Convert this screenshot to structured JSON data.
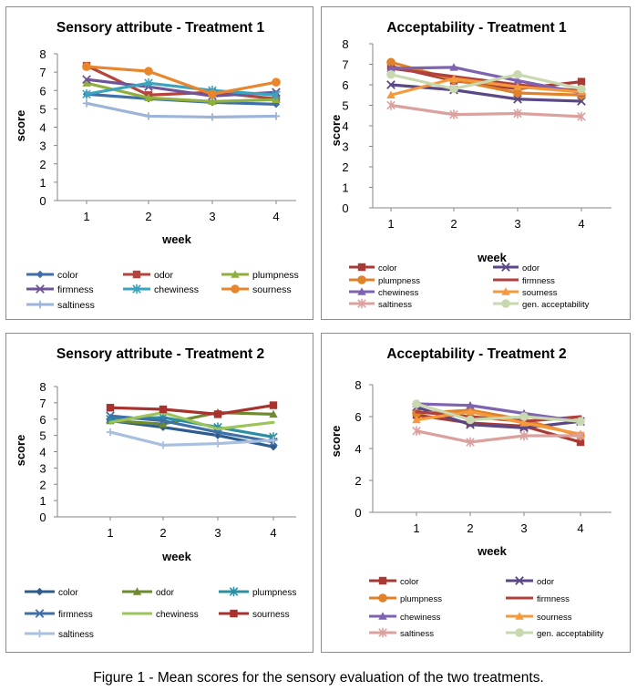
{
  "figure_caption": "Figure 1 - Mean scores for the sensory evaluation of the two treatments.",
  "chart_data": [
    {
      "type": "line",
      "title": "Sensory attribute - Treatment 1",
      "xlabel": "week",
      "ylabel": "score",
      "categories": [
        "1",
        "2",
        "3",
        "4"
      ],
      "ylim": [
        0,
        8
      ],
      "yticks": [
        "0",
        "1",
        "2",
        "3",
        "4",
        "5",
        "6",
        "7",
        "8"
      ],
      "grid": false,
      "legend": "bottom",
      "series": [
        {
          "name": "color",
          "color": "#3f6fa8",
          "marker": "diamond",
          "values": [
            5.8,
            5.55,
            5.35,
            5.25
          ]
        },
        {
          "name": "odor",
          "color": "#b5443d",
          "marker": "square",
          "values": [
            7.35,
            5.75,
            5.9,
            5.55
          ]
        },
        {
          "name": "plumpness",
          "color": "#8fb03e",
          "marker": "triangle",
          "values": [
            6.4,
            5.6,
            5.4,
            5.5
          ]
        },
        {
          "name": "firmness",
          "color": "#70549a",
          "marker": "x",
          "values": [
            6.6,
            6.2,
            5.7,
            5.9
          ]
        },
        {
          "name": "chewiness",
          "color": "#3ba3bd",
          "marker": "star",
          "values": [
            5.8,
            6.4,
            6.0,
            5.75
          ]
        },
        {
          "name": "sourness",
          "color": "#e8862e",
          "marker": "circle",
          "values": [
            7.3,
            7.05,
            5.8,
            6.45
          ]
        },
        {
          "name": "saltiness",
          "color": "#9db4d9",
          "marker": "plus",
          "values": [
            5.3,
            4.6,
            4.55,
            4.6
          ]
        }
      ]
    },
    {
      "type": "line",
      "title": "Acceptability - Treatment 1",
      "xlabel": "week",
      "ylabel": "score",
      "categories": [
        "1",
        "2",
        "3",
        "4"
      ],
      "ylim": [
        0,
        8
      ],
      "yticks": [
        "0",
        "1",
        "2",
        "3",
        "4",
        "5",
        "6",
        "7",
        "8"
      ],
      "grid": false,
      "legend": "bottom",
      "series": [
        {
          "name": "color",
          "color": "#a83a36",
          "marker": "square",
          "values": [
            6.9,
            6.2,
            5.8,
            6.15
          ]
        },
        {
          "name": "odor",
          "color": "#5a4785",
          "marker": "x",
          "values": [
            6.0,
            5.75,
            5.3,
            5.2
          ]
        },
        {
          "name": "plumpness",
          "color": "#e0822a",
          "marker": "circle",
          "values": [
            7.1,
            6.25,
            5.6,
            5.5
          ]
        },
        {
          "name": "firmness",
          "color": "#b0413c",
          "marker": "none",
          "values": [
            6.8,
            6.4,
            6.0,
            5.7
          ]
        },
        {
          "name": "chewiness",
          "color": "#7e63b0",
          "marker": "triangle",
          "values": [
            6.8,
            6.85,
            6.2,
            5.6
          ]
        },
        {
          "name": "sourness",
          "color": "#f59a3c",
          "marker": "triangle",
          "values": [
            5.5,
            6.3,
            5.9,
            5.65
          ]
        },
        {
          "name": "saltiness",
          "color": "#dba19f",
          "marker": "star",
          "values": [
            5.0,
            4.55,
            4.6,
            4.45
          ]
        },
        {
          "name": "gen. acceptability",
          "color": "#c8d9b0",
          "marker": "circle",
          "values": [
            6.5,
            5.8,
            6.5,
            5.8
          ]
        }
      ]
    },
    {
      "type": "line",
      "title": "Sensory attribute - Treatment 2",
      "xlabel": "week",
      "ylabel": "score",
      "categories": [
        "1",
        "2",
        "3",
        "4"
      ],
      "ylim": [
        0,
        8
      ],
      "yticks": [
        "0",
        "1",
        "2",
        "3",
        "4",
        "5",
        "6",
        "7",
        "8"
      ],
      "grid": false,
      "legend": "bottom",
      "series": [
        {
          "name": "color",
          "color": "#2f5c8f",
          "marker": "diamond",
          "values": [
            5.9,
            5.5,
            5.0,
            4.3
          ]
        },
        {
          "name": "odor",
          "color": "#6e8b30",
          "marker": "triangle",
          "values": [
            5.9,
            5.7,
            6.4,
            6.3
          ]
        },
        {
          "name": "plumpness",
          "color": "#2b8fa3",
          "marker": "star",
          "values": [
            6.0,
            6.1,
            5.5,
            4.9
          ]
        },
        {
          "name": "firmness",
          "color": "#3f6fa8",
          "marker": "x",
          "values": [
            6.2,
            5.9,
            5.2,
            4.6
          ]
        },
        {
          "name": "chewiness",
          "color": "#9cc45a",
          "marker": "none",
          "values": [
            5.8,
            6.4,
            5.4,
            5.8
          ]
        },
        {
          "name": "sourness",
          "color": "#a8322e",
          "marker": "square",
          "values": [
            6.7,
            6.6,
            6.3,
            6.85
          ]
        },
        {
          "name": "saltiness",
          "color": "#a9bfe0",
          "marker": "plus",
          "values": [
            5.2,
            4.4,
            4.5,
            4.7
          ]
        }
      ]
    },
    {
      "type": "line",
      "title": "Acceptability - Treatment 2",
      "xlabel": "week",
      "ylabel": "score",
      "categories": [
        "1",
        "2",
        "3",
        "4"
      ],
      "ylim": [
        0,
        8
      ],
      "yticks": [
        "0",
        "2",
        "4",
        "6",
        "8"
      ],
      "grid": false,
      "legend": "bottom",
      "series": [
        {
          "name": "color",
          "color": "#a83a36",
          "marker": "square",
          "values": [
            6.1,
            5.6,
            5.4,
            4.4
          ]
        },
        {
          "name": "odor",
          "color": "#5a4785",
          "marker": "x",
          "values": [
            6.6,
            5.5,
            5.3,
            5.7
          ]
        },
        {
          "name": "plumpness",
          "color": "#e0822a",
          "marker": "circle",
          "values": [
            6.2,
            6.4,
            5.8,
            4.8
          ]
        },
        {
          "name": "firmness",
          "color": "#b0413c",
          "marker": "none",
          "values": [
            6.3,
            6.0,
            5.7,
            6.0
          ]
        },
        {
          "name": "chewiness",
          "color": "#7e63b0",
          "marker": "triangle",
          "values": [
            6.8,
            6.7,
            6.2,
            5.7
          ]
        },
        {
          "name": "sourness",
          "color": "#f59a3c",
          "marker": "triangle",
          "values": [
            5.8,
            6.3,
            5.6,
            4.9
          ]
        },
        {
          "name": "saltiness",
          "color": "#dba19f",
          "marker": "star",
          "values": [
            5.1,
            4.4,
            4.8,
            4.8
          ]
        },
        {
          "name": "gen. acceptability",
          "color": "#c8d9b0",
          "marker": "circle",
          "values": [
            6.8,
            5.8,
            6.0,
            5.7
          ]
        }
      ]
    }
  ]
}
